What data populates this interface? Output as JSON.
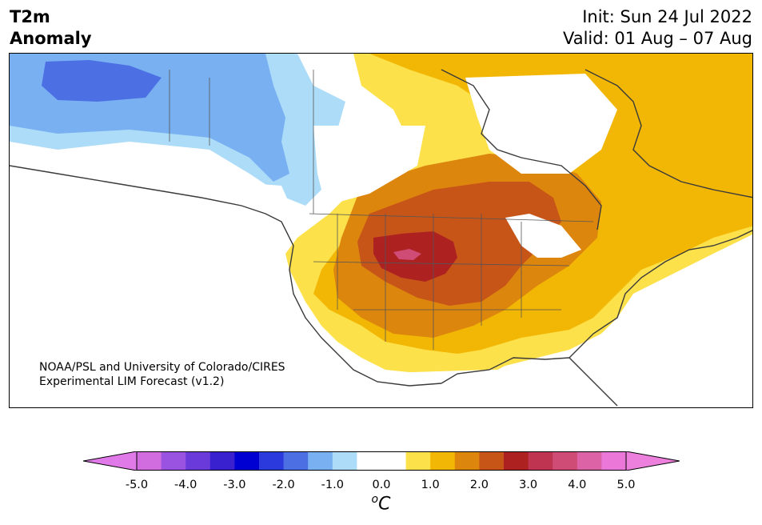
{
  "title": {
    "line1": "T2m",
    "line2": "Anomaly"
  },
  "run": {
    "init": "Init: Sun 24 Jul 2022",
    "valid": "Valid: 01 Aug – 07 Aug"
  },
  "credit": {
    "line1": "NOAA/PSL and University of Colorado/CIRES",
    "line2": "Experimental LIM Forecast (v1.2)"
  },
  "colorbar": {
    "ticks": [
      "-5.0",
      "-4.0",
      "-3.0",
      "-2.0",
      "-1.0",
      "0.0",
      "1.0",
      "2.0",
      "3.0",
      "4.0",
      "5.0"
    ],
    "unit_super": "o",
    "unit_main": "C",
    "colors": [
      "#d26de0",
      "#9a52e0",
      "#6a3adb",
      "#3a21d0",
      "#0000d3",
      "#2a3adc",
      "#4c6fe4",
      "#78b0f1",
      "#addcf8",
      "#ffffff",
      "#ffffff",
      "#fde14a",
      "#f2b705",
      "#dd860e",
      "#c75518",
      "#ad2121",
      "#bf3450",
      "#cf4c76",
      "#dc63a6",
      "#eb78d8"
    ],
    "under_color": "#e07ae9",
    "over_color": "#ed80dd"
  },
  "map_colors": {
    "land": "#ffffff",
    "neg1": "#addcf8",
    "neg2": "#78b0f1",
    "neg3": "#4c6fe4",
    "pos1": "#fde14a",
    "pos2": "#f2b705",
    "pos3": "#dd860e",
    "pos4": "#c75518",
    "pos5": "#ad2121",
    "pos6": "#cf4c76"
  }
}
